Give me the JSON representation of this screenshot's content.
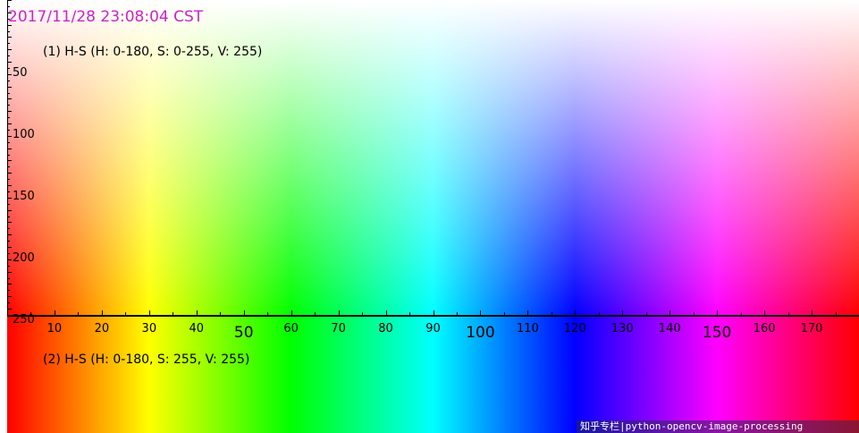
{
  "timestamp": "2017/11/28 23:08:04 CST",
  "panel1_label": "(1) H-S (H: 0-180, S: 0-255, V: 255)",
  "panel2_label": "(2) H-S (H: 0-180, S: 255, V: 255)",
  "y_ticks": [
    {
      "value": 50,
      "label": "50"
    },
    {
      "value": 100,
      "label": "100"
    },
    {
      "value": 150,
      "label": "150"
    },
    {
      "value": 200,
      "label": "200"
    },
    {
      "value": 250,
      "label": "250"
    }
  ],
  "x_ticks": [
    {
      "value": 10,
      "label": "10"
    },
    {
      "value": 20,
      "label": "20"
    },
    {
      "value": 30,
      "label": "30"
    },
    {
      "value": 40,
      "label": "40"
    },
    {
      "value": 50,
      "label": "50",
      "big": true
    },
    {
      "value": 60,
      "label": "60"
    },
    {
      "value": 70,
      "label": "70"
    },
    {
      "value": 80,
      "label": "80"
    },
    {
      "value": 90,
      "label": "90"
    },
    {
      "value": 100,
      "label": "100",
      "big": true
    },
    {
      "value": 110,
      "label": "110"
    },
    {
      "value": 120,
      "label": "120"
    },
    {
      "value": 130,
      "label": "130"
    },
    {
      "value": 140,
      "label": "140"
    },
    {
      "value": 150,
      "label": "150",
      "big": true
    },
    {
      "value": 160,
      "label": "160"
    },
    {
      "value": 170,
      "label": "170"
    }
  ],
  "hue_range": [
    0,
    180
  ],
  "saturation_range": [
    0,
    255
  ],
  "watermark": "知乎专栏|python-opencv-image-processing",
  "colors": {
    "timestamp": "#cc22cc",
    "axis": "#000000"
  }
}
